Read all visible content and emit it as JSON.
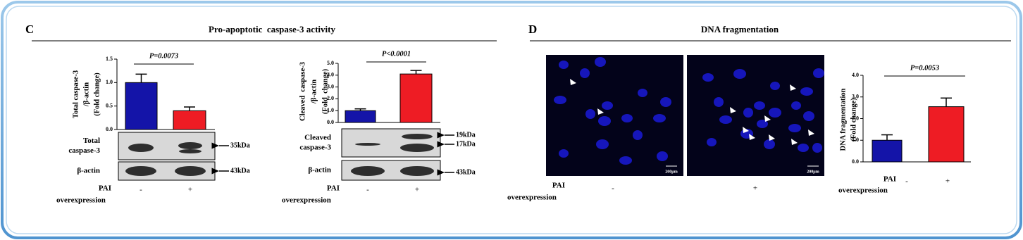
{
  "panels": [
    {
      "label": "C",
      "title": "Pro-apoptotic  caspase-3 activity"
    },
    {
      "label": "D",
      "title": "DNA fragmentation"
    }
  ],
  "treatment": {
    "label": "PAI",
    "sublabel": "overexpression"
  },
  "blots": [
    {
      "rows": [
        {
          "name": [
            "Total",
            "caspase-3"
          ],
          "markers": [
            "35kDa"
          ]
        },
        {
          "name": [
            "β-actin"
          ],
          "markers": [
            "43kDa"
          ]
        }
      ]
    },
    {
      "rows": [
        {
          "name": [
            "Cleaved",
            "caspase-3"
          ],
          "markers": [
            "19kDa",
            "17kDa"
          ]
        },
        {
          "name": [
            "β-actin"
          ],
          "markers": [
            "43kDa"
          ]
        }
      ]
    }
  ],
  "scale_bar": "200µm",
  "chart_data": [
    {
      "type": "bar",
      "ylabel": [
        "Total caspase-3",
        "/β-actin",
        "(Fold change)"
      ],
      "annotation": "P=0.0073",
      "categories": [
        "-",
        "+"
      ],
      "values": [
        1.0,
        0.4
      ],
      "errors": [
        0.18,
        0.08
      ],
      "colors": [
        "#1414a8",
        "#ee1c24"
      ],
      "ylim": [
        0,
        1.5
      ],
      "yticks": [
        {
          "value": 0,
          "label": "0.0"
        },
        0.5,
        {
          "value": 1,
          "label": "1.0"
        },
        1.5
      ]
    },
    {
      "type": "bar",
      "ylabel": [
        "Cleaved  caspase-3",
        "/β-actin",
        "(Fold  change)"
      ],
      "annotation": "P<0.0001",
      "categories": [
        "-",
        "+"
      ],
      "values": [
        1.0,
        4.1
      ],
      "errors": [
        0.15,
        0.3
      ],
      "colors": [
        "#1414a8",
        "#ee1c24"
      ],
      "ylim": [
        0,
        5
      ],
      "yticks": [
        {
          "value": 0,
          "label": "0.0"
        },
        {
          "value": 1,
          "label": "1.0"
        },
        {
          "value": 2,
          "label": "2.0"
        },
        {
          "value": 3,
          "label": "3.0"
        },
        {
          "value": 4,
          "label": "4.0"
        },
        {
          "value": 5,
          "label": "5.0"
        }
      ]
    },
    {
      "type": "bar",
      "ylabel": [
        "DNA fragmentation",
        "(Fold change)"
      ],
      "annotation": "P=0.0053",
      "categories": [
        "-",
        "+"
      ],
      "values": [
        1.0,
        2.55
      ],
      "errors": [
        0.25,
        0.4
      ],
      "colors": [
        "#1414a8",
        "#ee1c24"
      ],
      "ylim": [
        0,
        4
      ],
      "yticks": [
        {
          "value": 0,
          "label": "0.0"
        },
        {
          "value": 1,
          "label": "1.0"
        },
        {
          "value": 2,
          "label": "2.0"
        },
        {
          "value": 3,
          "label": "3.0"
        },
        {
          "value": 4,
          "label": "4.0"
        }
      ]
    }
  ]
}
